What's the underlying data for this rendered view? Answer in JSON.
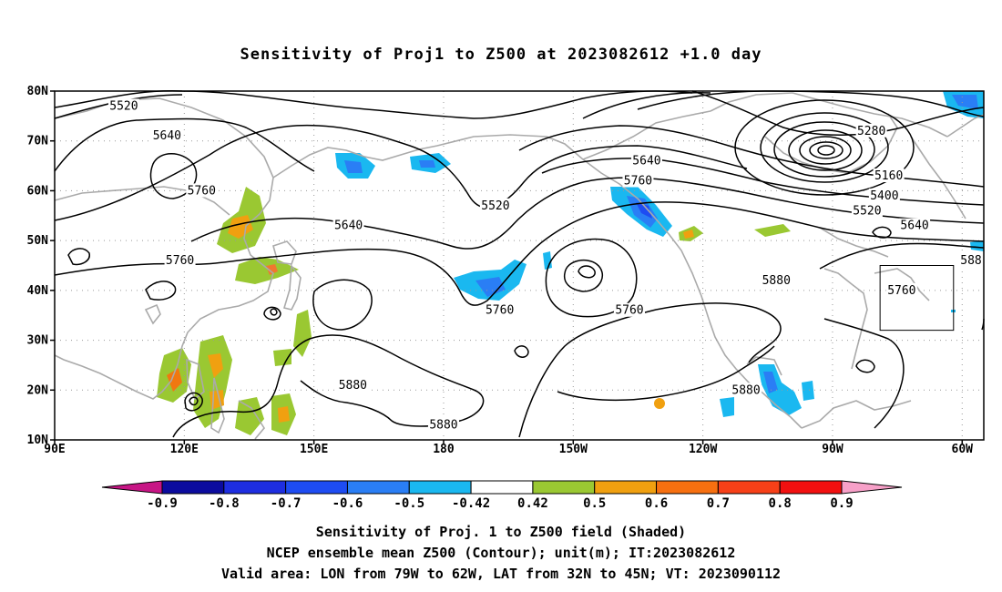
{
  "title": "Sensitivity of Proj1 to Z500 at 2023082612 +1.0 day",
  "captions": [
    "Sensitivity of Proj. 1 to Z500 field (Shaded)",
    "NCEP ensemble mean Z500 (Contour); unit(m); IT:2023082612",
    "Valid area: LON from 79W to 62W, LAT from 32N to 45N; VT: 2023090112"
  ],
  "map": {
    "lon_range": [
      90,
      305
    ],
    "lat_range": [
      10,
      80
    ],
    "lat_ticks": [
      {
        "lat": 80,
        "label": "80N"
      },
      {
        "lat": 70,
        "label": "70N"
      },
      {
        "lat": 60,
        "label": "60N"
      },
      {
        "lat": 50,
        "label": "50N"
      },
      {
        "lat": 40,
        "label": "40N"
      },
      {
        "lat": 30,
        "label": "30N"
      },
      {
        "lat": 20,
        "label": "20N"
      },
      {
        "lat": 10,
        "label": "10N"
      }
    ],
    "lon_ticks": [
      {
        "lon": 90,
        "label": "90E"
      },
      {
        "lon": 120,
        "label": "120E"
      },
      {
        "lon": 150,
        "label": "150E"
      },
      {
        "lon": 180,
        "label": "180"
      },
      {
        "lon": 210,
        "label": "150W"
      },
      {
        "lon": 240,
        "label": "120W"
      },
      {
        "lon": 270,
        "label": "90W"
      },
      {
        "lon": 300,
        "label": "60W"
      }
    ],
    "valid_box": {
      "lon_min": 281,
      "lon_max": 298,
      "lat_min": 32,
      "lat_max": 45
    },
    "contour_labels": [
      {
        "text": "5520",
        "lon": 106,
        "lat": 77
      },
      {
        "text": "5640",
        "lon": 116,
        "lat": 71
      },
      {
        "text": "5760",
        "lon": 124,
        "lat": 60
      },
      {
        "text": "5640",
        "lon": 158,
        "lat": 53
      },
      {
        "text": "5760",
        "lon": 119,
        "lat": 46
      },
      {
        "text": "5520",
        "lon": 192,
        "lat": 57
      },
      {
        "text": "5640",
        "lon": 227,
        "lat": 66
      },
      {
        "text": "5760",
        "lon": 225,
        "lat": 62
      },
      {
        "text": "5760",
        "lon": 193,
        "lat": 36
      },
      {
        "text": "5760",
        "lon": 223,
        "lat": 36
      },
      {
        "text": "5880",
        "lon": 257,
        "lat": 42
      },
      {
        "text": "5880",
        "lon": 159,
        "lat": 21
      },
      {
        "text": "5880",
        "lon": 180,
        "lat": 13
      },
      {
        "text": "5880",
        "lon": 250,
        "lat": 20
      },
      {
        "text": "5280",
        "lon": 279,
        "lat": 72
      },
      {
        "text": "5160",
        "lon": 283,
        "lat": 63
      },
      {
        "text": "5400",
        "lon": 282,
        "lat": 59
      },
      {
        "text": "5520",
        "lon": 278,
        "lat": 56
      },
      {
        "text": "5640",
        "lon": 289,
        "lat": 53
      },
      {
        "text": "5760",
        "lon": 286,
        "lat": 40
      },
      {
        "text": "588",
        "lon": 303,
        "lat": 46
      }
    ]
  },
  "colorbar": {
    "labels": [
      "-0.9",
      "-0.8",
      "-0.7",
      "-0.6",
      "-0.5",
      "-0.42",
      "0.42",
      "0.5",
      "0.6",
      "0.7",
      "0.8",
      "0.9"
    ],
    "colors": [
      "#c71585",
      "#0b0b9e",
      "#1e2ee0",
      "#1e4cf2",
      "#2a7ef5",
      "#1ab8f0",
      "#ffffff",
      "#9ac832",
      "#f0a010",
      "#f77010",
      "#f74018",
      "#f21010",
      "#f7a0c8"
    ]
  }
}
